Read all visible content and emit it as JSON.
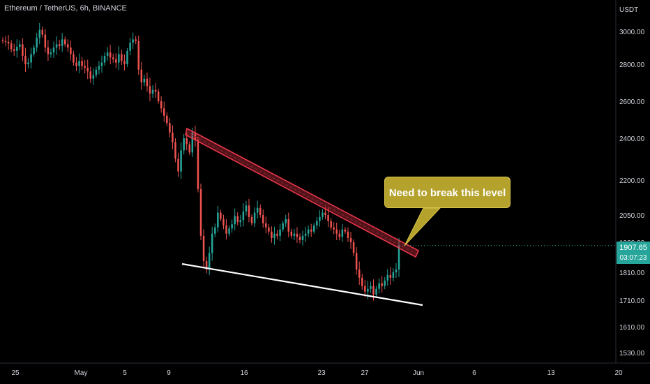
{
  "header": {
    "symbol": "Ethereum / TetherUS, 6h, BINANCE"
  },
  "price_axis": {
    "currency": "USDT"
  },
  "last_price": {
    "value": "1907.65",
    "countdown": "03:07:23"
  },
  "annotation": {
    "text": "Need to break this level"
  },
  "colors": {
    "up": "#26a69a",
    "down": "#ef5350",
    "trendline": "#e8364a",
    "support": "#ffffff",
    "callout": "#b5a22d"
  },
  "chart_data": {
    "type": "candlestick",
    "title": "Ethereum / TetherUS, 6h, BINANCE",
    "xlabel": "",
    "ylabel": "",
    "y_scale": "log",
    "y_ticks": [
      3000,
      2800,
      2600,
      2400,
      2200,
      2050,
      1920,
      1810,
      1710,
      1610,
      1530
    ],
    "y_tick_labels": [
      "3000.00",
      "2800.00",
      "2600.00",
      "2400.00",
      "2200.00",
      "2050.00",
      "1920.00",
      "1810.00",
      "1710.00",
      "1610.00",
      "1530.00"
    ],
    "x_ticks": [
      "25",
      "May",
      "5",
      "9",
      "16",
      "23",
      "27",
      "Jun",
      "6",
      "13",
      "20"
    ],
    "grid": false,
    "close_series": [
      2940,
      2935,
      2925,
      2890,
      2880,
      2905,
      2920,
      2850,
      2800,
      2810,
      2860,
      2900,
      2960,
      3010,
      2980,
      2900,
      2860,
      2870,
      2900,
      2920,
      2910,
      2950,
      2920,
      2900,
      2860,
      2810,
      2790,
      2820,
      2790,
      2780,
      2760,
      2720,
      2740,
      2770,
      2790,
      2810,
      2850,
      2870,
      2840,
      2830,
      2810,
      2860,
      2820,
      2800,
      2880,
      2930,
      2950,
      2940,
      2770,
      2700,
      2720,
      2680,
      2640,
      2660,
      2650,
      2600,
      2560,
      2520,
      2480,
      2430,
      2380,
      2300,
      2240,
      2340,
      2400,
      2370,
      2330,
      2430,
      2390,
      2160,
      1950,
      1850,
      1820,
      1880,
      1960,
      1990,
      2060,
      2030,
      2000,
      1960,
      1985,
      2005,
      2045,
      2015,
      2025,
      2065,
      2090,
      2040,
      2010,
      2060,
      2080,
      2050,
      2010,
      1990,
      1970,
      1940,
      1960,
      1950,
      1980,
      2010,
      2030,
      1970,
      1950,
      1960,
      1945,
      1930,
      1950,
      1960,
      1980,
      1970,
      2000,
      2020,
      2040,
      2060,
      2050,
      2020,
      1990,
      1980,
      1960,
      1945,
      1980,
      1970,
      1940,
      1920,
      1880,
      1820,
      1790,
      1760,
      1740,
      1750,
      1760,
      1730,
      1750,
      1770,
      1760,
      1780,
      1800,
      1790,
      1810,
      1820,
      1907.65
    ],
    "annotations": [
      {
        "type": "descending_trendline",
        "from": {
          "date": "May 10",
          "price": 2445
        },
        "to": {
          "date": "May 29",
          "price": 1900
        }
      },
      {
        "type": "support_line",
        "from": {
          "date": "May 10",
          "price": 1835
        },
        "to": {
          "date": "May 31",
          "price": 1695
        }
      },
      {
        "type": "callout",
        "text": "Need to break this level"
      }
    ],
    "last_price": 1907.65
  }
}
